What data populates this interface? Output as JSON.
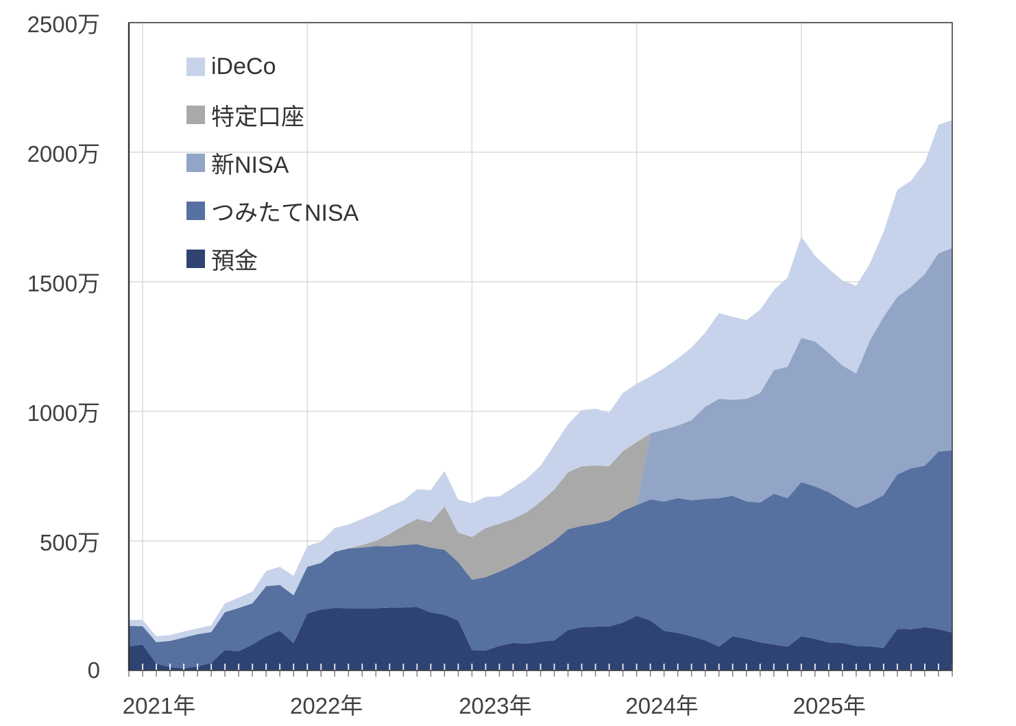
{
  "chart_data": {
    "type": "area",
    "stacked": true,
    "title": "",
    "grid": true,
    "legend_position": "top-left-inside",
    "y_axis": {
      "min": 0,
      "max": 2500,
      "step": 500,
      "unit": "万",
      "tick_labels": [
        "0",
        "500万",
        "1000万",
        "1500万",
        "2000万",
        "2500万"
      ]
    },
    "x_axis": {
      "tick_labels": [
        "2021年",
        "2022年",
        "2023年",
        "2024年",
        "2025年"
      ],
      "minor_ticks": "monthly"
    },
    "months": [
      "2020-12",
      "2021-01",
      "2021-02",
      "2021-03",
      "2021-04",
      "2021-05",
      "2021-06",
      "2021-07",
      "2021-08",
      "2021-09",
      "2021-10",
      "2021-11",
      "2021-12",
      "2022-01",
      "2022-02",
      "2022-03",
      "2022-04",
      "2022-05",
      "2022-06",
      "2022-07",
      "2022-08",
      "2022-09",
      "2022-10",
      "2022-11",
      "2022-12",
      "2023-01",
      "2023-02",
      "2023-03",
      "2023-04",
      "2023-05",
      "2023-06",
      "2023-07",
      "2023-08",
      "2023-09",
      "2023-10",
      "2023-11",
      "2023-12",
      "2024-01",
      "2024-02",
      "2024-03",
      "2024-04",
      "2024-05",
      "2024-06",
      "2024-07",
      "2024-08",
      "2024-09",
      "2024-10",
      "2024-11",
      "2024-12",
      "2025-01",
      "2025-02",
      "2025-03",
      "2025-04",
      "2025-05",
      "2025-06",
      "2025-07",
      "2025-08",
      "2025-09",
      "2025-10",
      "2025-11",
      "2025-12"
    ],
    "series": [
      {
        "name": "預金",
        "color": "#2e4372",
        "values": [
          93,
          100,
          26,
          13,
          8,
          16,
          29,
          79,
          74,
          100,
          132,
          153,
          105,
          220,
          235,
          241,
          240,
          240,
          240,
          242,
          243,
          245,
          224,
          215,
          192,
          78,
          77,
          95,
          106,
          103,
          111,
          116,
          156,
          167,
          169,
          170,
          185,
          211,
          193,
          153,
          145,
          132,
          116,
          92,
          132,
          122,
          108,
          100,
          92,
          132,
          122,
          108,
          106,
          95,
          93,
          87,
          161,
          159,
          167,
          159,
          146
        ]
      },
      {
        "name": "つみたてNISA",
        "color": "#56709f",
        "values": [
          79,
          71,
          83,
          101,
          119,
          124,
          119,
          146,
          167,
          159,
          193,
          177,
          185,
          180,
          180,
          217,
          231,
          234,
          240,
          237,
          241,
          242,
          250,
          251,
          226,
          272,
          283,
          286,
          299,
          331,
          355,
          384,
          389,
          391,
          397,
          409,
          431,
          427,
          467,
          499,
          520,
          525,
          546,
          573,
          542,
          530,
          540,
          582,
          573,
          595,
          588,
          580,
          550,
          532,
          555,
          590,
          596,
          621,
          623,
          686,
          704
        ]
      },
      {
        "name": "新NISA",
        "color": "#93a5c6",
        "values": [
          0,
          0,
          0,
          0,
          0,
          0,
          0,
          0,
          0,
          0,
          0,
          0,
          0,
          0,
          0,
          0,
          0,
          0,
          0,
          0,
          0,
          0,
          0,
          0,
          0,
          0,
          0,
          0,
          0,
          0,
          0,
          0,
          0,
          0,
          0,
          0,
          0,
          0,
          255,
          278,
          280,
          309,
          356,
          383,
          371,
          396,
          423,
          477,
          507,
          556,
          560,
          537,
          521,
          519,
          625,
          688,
          685,
          700,
          740,
          765,
          780
        ]
      },
      {
        "name": "特定口座",
        "color": "#a9a9a9",
        "values": [
          0,
          0,
          0,
          0,
          0,
          0,
          0,
          0,
          0,
          0,
          0,
          0,
          0,
          0,
          0,
          0,
          0,
          10,
          20,
          48,
          74,
          98,
          98,
          167,
          114,
          165,
          190,
          185,
          180,
          177,
          185,
          198,
          220,
          230,
          225,
          209,
          231,
          243,
          0,
          0,
          0,
          0,
          0,
          0,
          0,
          0,
          0,
          0,
          0,
          0,
          0,
          0,
          0,
          0,
          0,
          0,
          0,
          0,
          0,
          0,
          0
        ]
      },
      {
        "name": "iDeCo",
        "color": "#c7d3ea",
        "values": [
          23,
          24,
          23,
          23,
          23,
          22,
          27,
          34,
          40,
          45,
          59,
          70,
          75,
          80,
          82,
          92,
          92,
          101,
          106,
          106,
          98,
          114,
          124,
          137,
          127,
          130,
          120,
          106,
          120,
          129,
          139,
          172,
          185,
          217,
          219,
          207,
          224,
          225,
          220,
          237,
          259,
          280,
          286,
          331,
          320,
          304,
          321,
          309,
          344,
          392,
          330,
          325,
          328,
          338,
          297,
          328,
          413,
          410,
          431,
          496,
          494
        ]
      }
    ],
    "legend": [
      {
        "label": "iDeCo",
        "color": "#c7d3ea"
      },
      {
        "label": "特定口座",
        "color": "#a9a9a9"
      },
      {
        "label": "新NISA",
        "color": "#93a5c6"
      },
      {
        "label": "つみたてNISA",
        "color": "#56709f"
      },
      {
        "label": "預金",
        "color": "#2e4372"
      }
    ]
  },
  "colors": {
    "background": "#ffffff",
    "grid": "#d9d9d9",
    "axis_border": "#3f3f3f",
    "tick_below": "#808080",
    "tick_inside": "#ffffff",
    "text": "#404040"
  }
}
